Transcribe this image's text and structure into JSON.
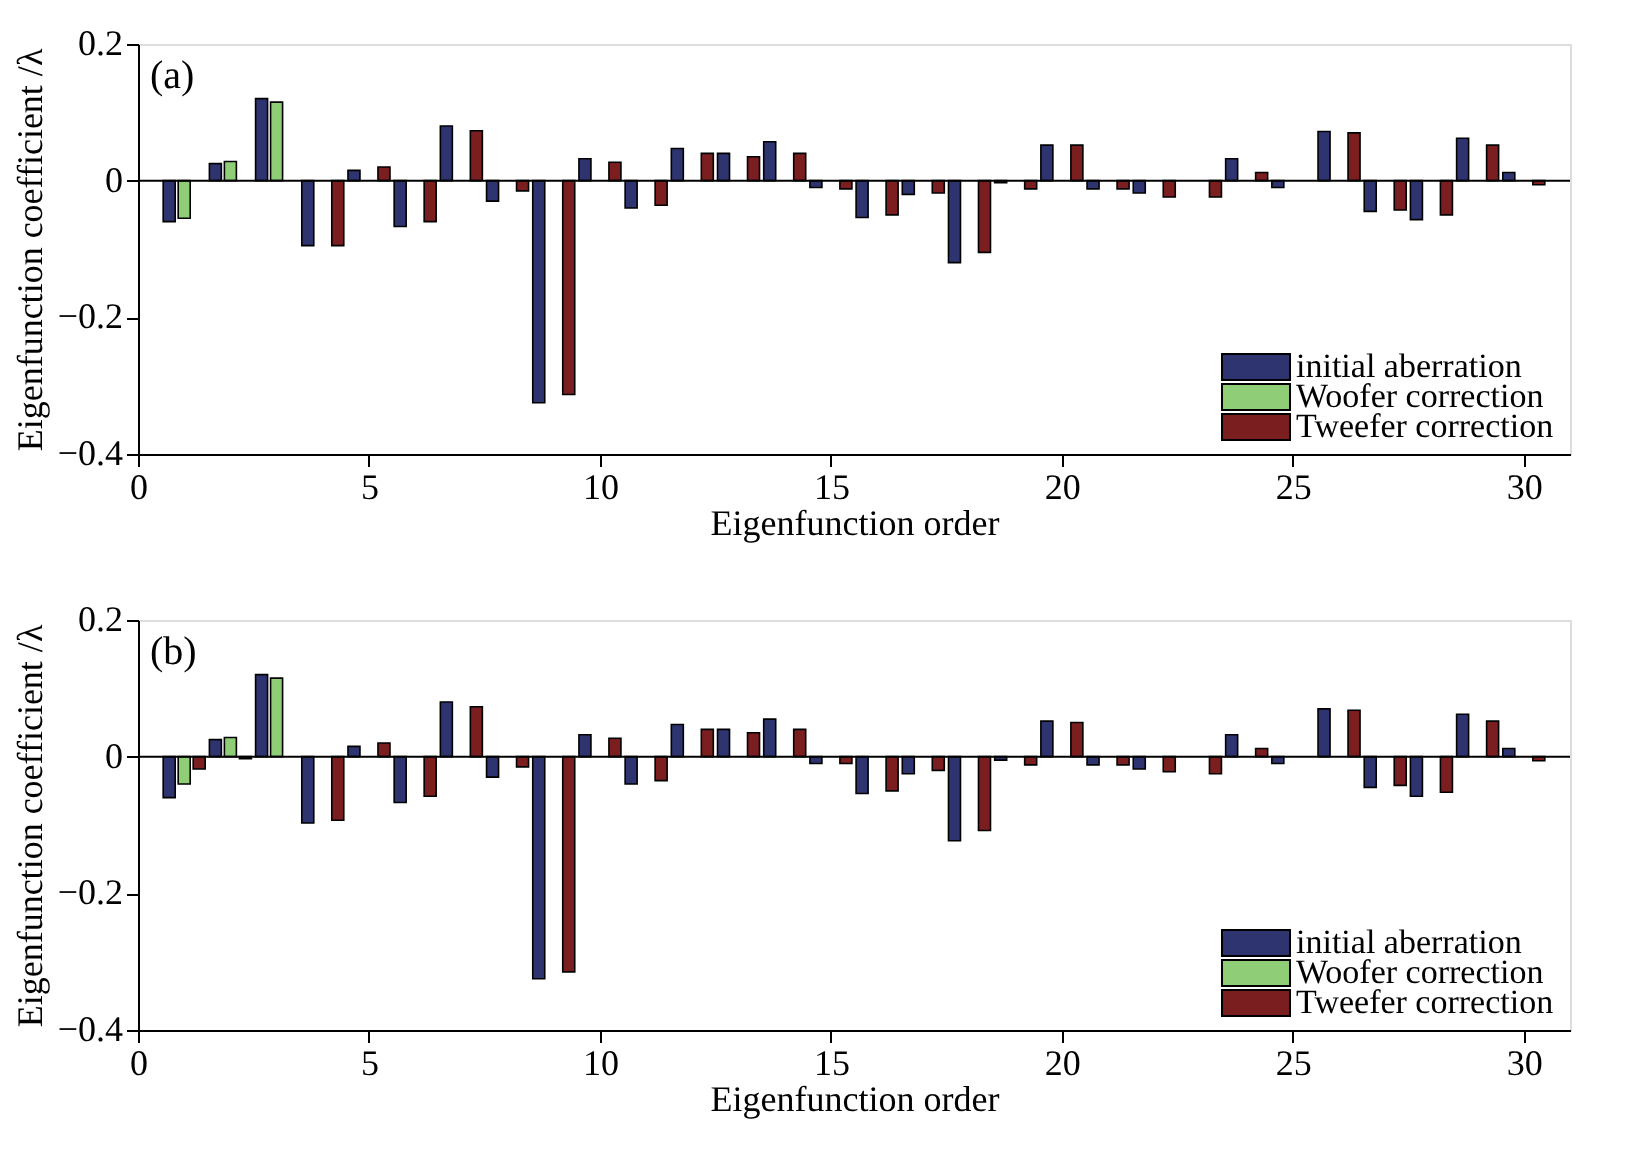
{
  "chart_data": [
    {
      "type": "bar",
      "annotations": [
        "(a)"
      ],
      "xlabel": "Eigenfunction order",
      "ylabel": "Eigenfunction coefficient /λ",
      "x": [
        1,
        2,
        3,
        4,
        5,
        6,
        7,
        8,
        9,
        10,
        11,
        12,
        13,
        14,
        15,
        16,
        17,
        18,
        19,
        20,
        21,
        22,
        23,
        24,
        25,
        26,
        27,
        28,
        29,
        30
      ],
      "series": [
        {
          "name": "initial aberration",
          "color": "#2e3470",
          "values": [
            -0.06,
            0.025,
            0.12,
            -0.095,
            0.015,
            -0.067,
            0.08,
            -0.03,
            -0.325,
            0.032,
            -0.04,
            0.047,
            0.04,
            0.057,
            -0.01,
            -0.054,
            -0.02,
            -0.12,
            -0.003,
            0.052,
            -0.012,
            -0.018,
            null,
            0.032,
            -0.01,
            0.072,
            -0.045,
            -0.057,
            0.062,
            0.012
          ]
        },
        {
          "name": "Woofer correction",
          "color": "#8fce76",
          "values": [
            -0.055,
            0.028,
            0.115,
            null,
            null,
            null,
            null,
            null,
            null,
            null,
            null,
            null,
            null,
            null,
            null,
            null,
            null,
            null,
            null,
            null,
            null,
            null,
            null,
            null,
            null,
            null,
            null,
            null,
            null,
            null
          ]
        },
        {
          "name": "Tweefer correction",
          "color": "#7a1e20",
          "values": [
            null,
            null,
            null,
            -0.095,
            0.02,
            -0.06,
            0.073,
            -0.015,
            -0.313,
            0.027,
            -0.036,
            0.04,
            0.035,
            0.04,
            -0.012,
            -0.05,
            -0.018,
            -0.105,
            -0.012,
            0.052,
            -0.012,
            -0.024,
            -0.024,
            0.012,
            null,
            0.07,
            -0.043,
            -0.05,
            0.052,
            -0.006
          ]
        }
      ],
      "xlim": [
        0,
        31
      ],
      "xticks": [
        0,
        5,
        10,
        15,
        20,
        25,
        30
      ],
      "ylim": [
        -0.4,
        0.2
      ],
      "yticks": [
        {
          "value": 0.2,
          "label": "0.2"
        },
        0,
        {
          "value": -0.2,
          "label": "−0.2"
        },
        {
          "value": -0.4,
          "label": "−0.4"
        }
      ],
      "ref_lines": [
        {
          "axis": "y",
          "value": 0
        }
      ],
      "grid": false,
      "legend": "bottom right"
    },
    {
      "type": "bar",
      "annotations": [
        "(b)"
      ],
      "xlabel": "Eigenfunction order",
      "ylabel": "Eigenfunction coefficient /λ",
      "x": [
        1,
        2,
        3,
        4,
        5,
        6,
        7,
        8,
        9,
        10,
        11,
        12,
        13,
        14,
        15,
        16,
        17,
        18,
        19,
        20,
        21,
        22,
        23,
        24,
        25,
        26,
        27,
        28,
        29,
        30
      ],
      "series": [
        {
          "name": "initial aberration",
          "color": "#2e3470",
          "values": [
            -0.06,
            0.025,
            0.12,
            -0.097,
            0.015,
            -0.067,
            0.08,
            -0.03,
            -0.325,
            0.032,
            -0.04,
            0.047,
            0.04,
            0.055,
            -0.01,
            -0.054,
            -0.025,
            -0.123,
            -0.005,
            0.052,
            -0.012,
            -0.018,
            null,
            0.032,
            -0.01,
            0.07,
            -0.045,
            -0.058,
            0.062,
            0.012
          ]
        },
        {
          "name": "Woofer correction",
          "color": "#8fce76",
          "values": [
            -0.04,
            0.028,
            0.115,
            null,
            null,
            null,
            null,
            null,
            null,
            null,
            null,
            null,
            null,
            null,
            null,
            null,
            null,
            null,
            null,
            null,
            null,
            null,
            null,
            null,
            null,
            null,
            null,
            null,
            null,
            null
          ]
        },
        {
          "name": "Tweefer correction",
          "color": "#7a1e20",
          "values": [
            -0.018,
            -0.003,
            null,
            -0.093,
            0.02,
            -0.058,
            0.073,
            -0.015,
            -0.315,
            0.027,
            -0.035,
            0.04,
            0.035,
            0.04,
            -0.01,
            -0.05,
            -0.02,
            -0.108,
            -0.012,
            0.05,
            -0.012,
            -0.022,
            -0.025,
            0.012,
            null,
            0.068,
            -0.042,
            -0.052,
            0.052,
            -0.006
          ]
        }
      ],
      "xlim": [
        0,
        31
      ],
      "xticks": [
        0,
        5,
        10,
        15,
        20,
        25,
        30
      ],
      "ylim": [
        -0.4,
        0.2
      ],
      "yticks": [
        {
          "value": 0.2,
          "label": "0.2"
        },
        0,
        {
          "value": -0.2,
          "label": "−0.2"
        },
        {
          "value": -0.4,
          "label": "−0.4"
        }
      ],
      "ref_lines": [
        {
          "axis": "y",
          "value": 0
        }
      ],
      "grid": false,
      "legend": "bottom right"
    }
  ]
}
